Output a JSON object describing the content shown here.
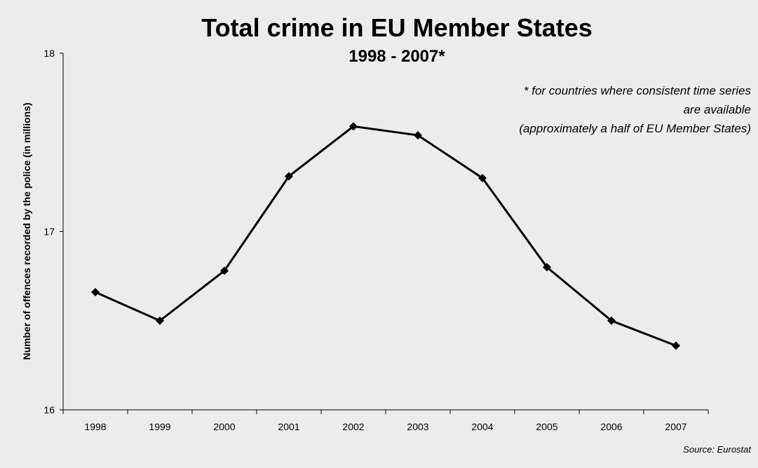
{
  "chart_data": {
    "type": "line",
    "title": "Total crime in EU Member States",
    "subtitle": "1998 - 2007*",
    "xlabel": "",
    "ylabel": "Number of offences recorded by the police (in millions)",
    "categories": [
      "1998",
      "1999",
      "2000",
      "2001",
      "2002",
      "2003",
      "2004",
      "2005",
      "2006",
      "2007"
    ],
    "series": [
      {
        "values": [
          16.66,
          16.5,
          16.78,
          17.31,
          17.59,
          17.54,
          17.3,
          16.8,
          16.5,
          16.36
        ]
      }
    ],
    "ylim": [
      16,
      18
    ],
    "yticks": [
      "16",
      "17",
      "18"
    ],
    "grid": false,
    "line_color": "#000000",
    "marker": "diamond",
    "annotation": [
      "* for countries where consistent time series",
      "are available",
      "(approximately a half of EU Member States)"
    ],
    "source": "Source: Eurostat"
  }
}
